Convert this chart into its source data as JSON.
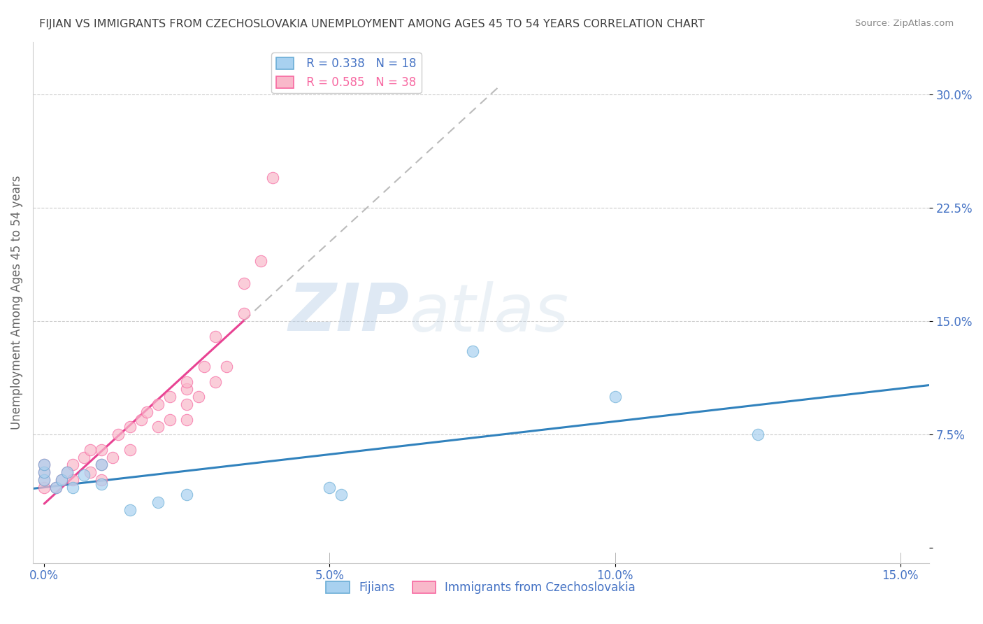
{
  "title": "FIJIAN VS IMMIGRANTS FROM CZECHOSLOVAKIA UNEMPLOYMENT AMONG AGES 45 TO 54 YEARS CORRELATION CHART",
  "source": "Source: ZipAtlas.com",
  "ylabel": "Unemployment Among Ages 45 to 54 years",
  "xlim": [
    -0.002,
    0.155
  ],
  "ylim": [
    -0.01,
    0.335
  ],
  "xticks": [
    0.0,
    0.05,
    0.1,
    0.15
  ],
  "xtick_labels": [
    "0.0%",
    "5.0%",
    "10.0%",
    "15.0%"
  ],
  "yticks": [
    0.0,
    0.075,
    0.15,
    0.225,
    0.3
  ],
  "ytick_labels_right": [
    "",
    "7.5%",
    "15.0%",
    "22.5%",
    "30.0%"
  ],
  "fijian_color": "#a8d1f0",
  "fijian_edge": "#6baed6",
  "czech_color": "#f9b8ca",
  "czech_edge": "#f768a1",
  "fijian_line_color": "#3182bd",
  "czech_line_color": "#e84393",
  "fijian_R": 0.338,
  "fijian_N": 18,
  "czech_R": 0.585,
  "czech_N": 38,
  "legend_label_fijian": "Fijians",
  "legend_label_czech": "Immigrants from Czechoslovakia",
  "watermark_zip": "ZIP",
  "watermark_atlas": "atlas",
  "fijian_x": [
    0.0,
    0.0,
    0.0,
    0.002,
    0.003,
    0.004,
    0.005,
    0.007,
    0.01,
    0.01,
    0.015,
    0.02,
    0.025,
    0.05,
    0.052,
    0.075,
    0.1,
    0.125
  ],
  "fijian_y": [
    0.045,
    0.05,
    0.055,
    0.04,
    0.045,
    0.05,
    0.04,
    0.048,
    0.042,
    0.055,
    0.025,
    0.03,
    0.035,
    0.04,
    0.035,
    0.13,
    0.1,
    0.075
  ],
  "czech_x": [
    0.0,
    0.0,
    0.0,
    0.0,
    0.002,
    0.003,
    0.004,
    0.005,
    0.005,
    0.007,
    0.008,
    0.008,
    0.01,
    0.01,
    0.01,
    0.012,
    0.013,
    0.015,
    0.015,
    0.017,
    0.018,
    0.02,
    0.02,
    0.022,
    0.022,
    0.025,
    0.025,
    0.025,
    0.025,
    0.027,
    0.028,
    0.03,
    0.03,
    0.032,
    0.035,
    0.035,
    0.038,
    0.04
  ],
  "czech_y": [
    0.04,
    0.045,
    0.05,
    0.055,
    0.04,
    0.045,
    0.05,
    0.055,
    0.045,
    0.06,
    0.065,
    0.05,
    0.045,
    0.055,
    0.065,
    0.06,
    0.075,
    0.065,
    0.08,
    0.085,
    0.09,
    0.08,
    0.095,
    0.085,
    0.1,
    0.085,
    0.095,
    0.105,
    0.11,
    0.1,
    0.12,
    0.11,
    0.14,
    0.12,
    0.155,
    0.175,
    0.19,
    0.245
  ],
  "background_color": "#ffffff",
  "grid_color": "#cccccc",
  "title_color": "#404040",
  "axis_label_color": "#666666",
  "tick_label_color": "#4472c4"
}
